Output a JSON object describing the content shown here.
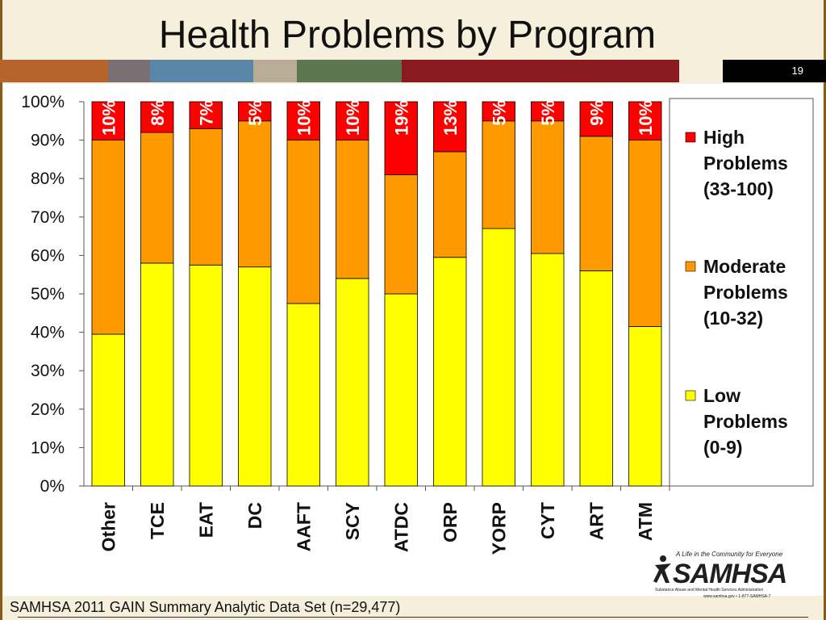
{
  "slide": {
    "title": "Health Problems by Program",
    "page_number": "19",
    "footer": "SAMHSA 2011 GAIN Summary Analytic Data Set (n=29,477)",
    "header_colors": [
      "#b5652b",
      "#7a6f73",
      "#5a87a8",
      "#b9ad98",
      "#5b7650",
      "#8b1a1e"
    ]
  },
  "logo": {
    "wordmark": "SAMHSA",
    "tagline": "A Life in the Community for Everyone",
    "subtitle": "Substance Abuse and Mental Health Services Administration",
    "url": "www.samhsa.gov • 1-877-SAMHSA-7"
  },
  "chart_data": {
    "type": "bar",
    "stacked": true,
    "categories": [
      "Other",
      "TCE",
      "EAT",
      "DC",
      "AAFT",
      "SCY",
      "ATDC",
      "ORP",
      "YORP",
      "CYT",
      "ART",
      "ATM"
    ],
    "series": [
      {
        "name": "Low Problems (0-9)",
        "color": "#ffff00",
        "values": [
          39.5,
          58,
          57.5,
          57,
          47.5,
          54,
          50,
          59.5,
          67,
          60.5,
          56,
          41.5
        ]
      },
      {
        "name": "Moderate Problems (10-32)",
        "color": "#ff9900",
        "values": [
          50.5,
          34,
          35.5,
          38,
          42.5,
          36,
          31,
          27.5,
          28,
          34.5,
          35,
          48.5
        ]
      },
      {
        "name": "High Problems (33-100)",
        "color": "#ff0000",
        "values": [
          10,
          8,
          7,
          5,
          10,
          10,
          19,
          13,
          5,
          5,
          9,
          10
        ]
      }
    ],
    "data_labels": [
      "10%",
      "8%",
      "7%",
      "5%",
      "10%",
      "10%",
      "19%",
      "13%",
      "5%",
      "5%",
      "9%",
      "10%"
    ],
    "y_ticks": [
      "0%",
      "10%",
      "20%",
      "30%",
      "40%",
      "50%",
      "60%",
      "70%",
      "80%",
      "90%",
      "100%"
    ],
    "ylim": [
      0,
      100
    ],
    "legend": [
      {
        "lines": [
          "High",
          "Problems",
          "(33-100)"
        ],
        "color": "#ff0000"
      },
      {
        "lines": [
          "Moderate",
          "Problems",
          "(10-32)"
        ],
        "color": "#ff9900"
      },
      {
        "lines": [
          "Low",
          "Problems",
          "(0-9)"
        ],
        "color": "#ffff00"
      }
    ],
    "legend_position": "right",
    "grid": false
  }
}
